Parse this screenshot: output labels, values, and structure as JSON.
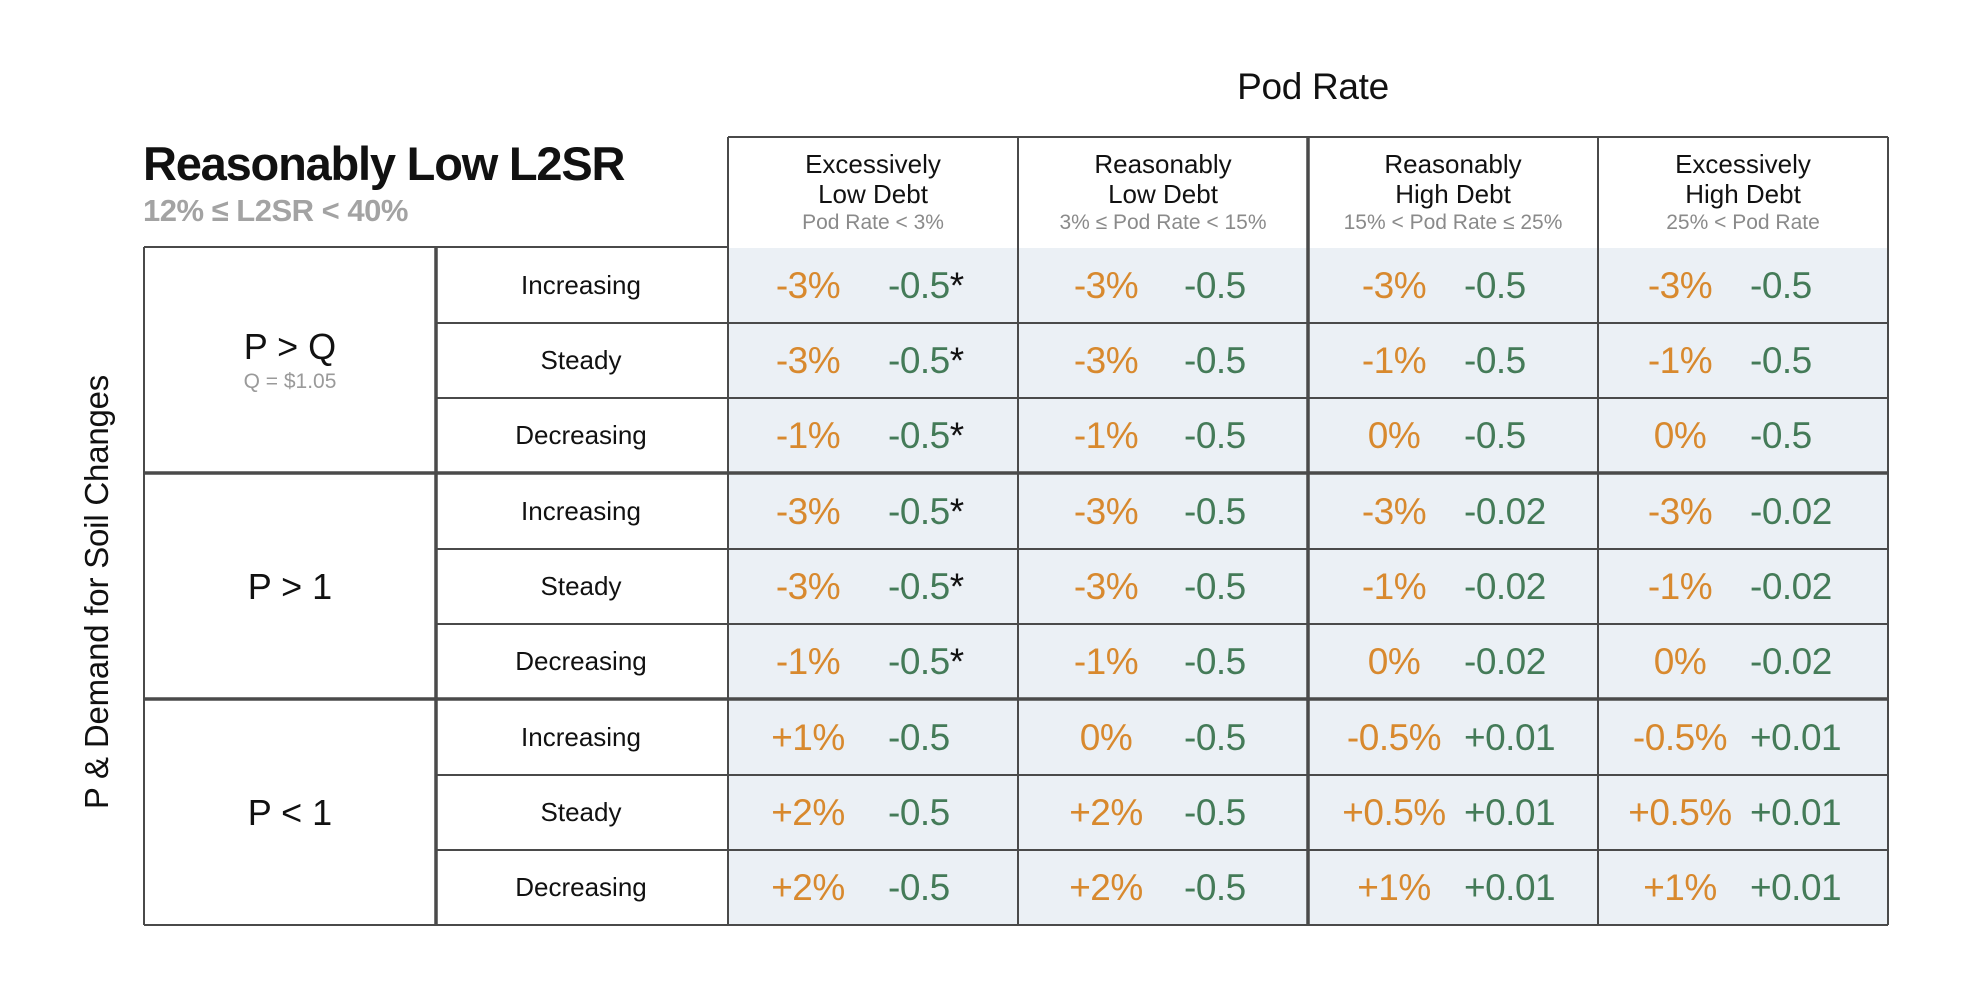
{
  "super_header": "Pod Rate",
  "title": "Reasonably Low L2SR",
  "subtitle": "12% ≤ L2SR < 40%",
  "row_axis_label": "P & Demand for Soil Changes",
  "columns": [
    {
      "line1": "Excessively",
      "line2": "Low Debt",
      "sub": "Pod Rate < 3%"
    },
    {
      "line1": "Reasonably",
      "line2": "Low Debt",
      "sub": "3% ≤ Pod Rate < 15%"
    },
    {
      "line1": "Reasonably",
      "line2": "High Debt",
      "sub": "15% < Pod Rate ≤ 25%"
    },
    {
      "line1": "Excessively",
      "line2": "High Debt",
      "sub": "25% < Pod Rate"
    }
  ],
  "groups": [
    {
      "label": "P > Q",
      "sub": "Q = $1.05"
    },
    {
      "label": "P > 1",
      "sub": ""
    },
    {
      "label": "P < 1",
      "sub": ""
    }
  ],
  "trends": [
    "Increasing",
    "Steady",
    "Decreasing",
    "Increasing",
    "Steady",
    "Decreasing",
    "Increasing",
    "Steady",
    "Decreasing"
  ],
  "cells": [
    [
      [
        "-3%",
        "-0.5",
        "*"
      ],
      [
        "-3%",
        "-0.5",
        ""
      ],
      [
        "-3%",
        "-0.5",
        ""
      ],
      [
        "-3%",
        "-0.5",
        ""
      ]
    ],
    [
      [
        "-3%",
        "-0.5",
        "*"
      ],
      [
        "-3%",
        "-0.5",
        ""
      ],
      [
        "-1%",
        "-0.5",
        ""
      ],
      [
        "-1%",
        "-0.5",
        ""
      ]
    ],
    [
      [
        "-1%",
        "-0.5",
        "*"
      ],
      [
        "-1%",
        "-0.5",
        ""
      ],
      [
        "0%",
        "-0.5",
        ""
      ],
      [
        "0%",
        "-0.5",
        ""
      ]
    ],
    [
      [
        "-3%",
        "-0.5",
        "*"
      ],
      [
        "-3%",
        "-0.5",
        ""
      ],
      [
        "-3%",
        "-0.02",
        ""
      ],
      [
        "-3%",
        "-0.02",
        ""
      ]
    ],
    [
      [
        "-3%",
        "-0.5",
        "*"
      ],
      [
        "-3%",
        "-0.5",
        ""
      ],
      [
        "-1%",
        "-0.02",
        ""
      ],
      [
        "-1%",
        "-0.02",
        ""
      ]
    ],
    [
      [
        "-1%",
        "-0.5",
        "*"
      ],
      [
        "-1%",
        "-0.5",
        ""
      ],
      [
        "0%",
        "-0.02",
        ""
      ],
      [
        "0%",
        "-0.02",
        ""
      ]
    ],
    [
      [
        "+1%",
        "-0.5",
        ""
      ],
      [
        "0%",
        "-0.5",
        ""
      ],
      [
        "-0.5%",
        "+0.01",
        ""
      ],
      [
        "-0.5%",
        "+0.01",
        ""
      ]
    ],
    [
      [
        "+2%",
        "-0.5",
        ""
      ],
      [
        "+2%",
        "-0.5",
        ""
      ],
      [
        "+0.5%",
        "+0.01",
        ""
      ],
      [
        "+0.5%",
        "+0.01",
        ""
      ]
    ],
    [
      [
        "+2%",
        "-0.5",
        ""
      ],
      [
        "+2%",
        "-0.5",
        ""
      ],
      [
        "+1%",
        "+0.01",
        ""
      ],
      [
        "+1%",
        "+0.01",
        ""
      ]
    ]
  ],
  "colors": {
    "first_value": "#d8892e",
    "second_value": "#447b58",
    "cell_fill": "#ebf0f5",
    "border": "#4a4a4a"
  }
}
